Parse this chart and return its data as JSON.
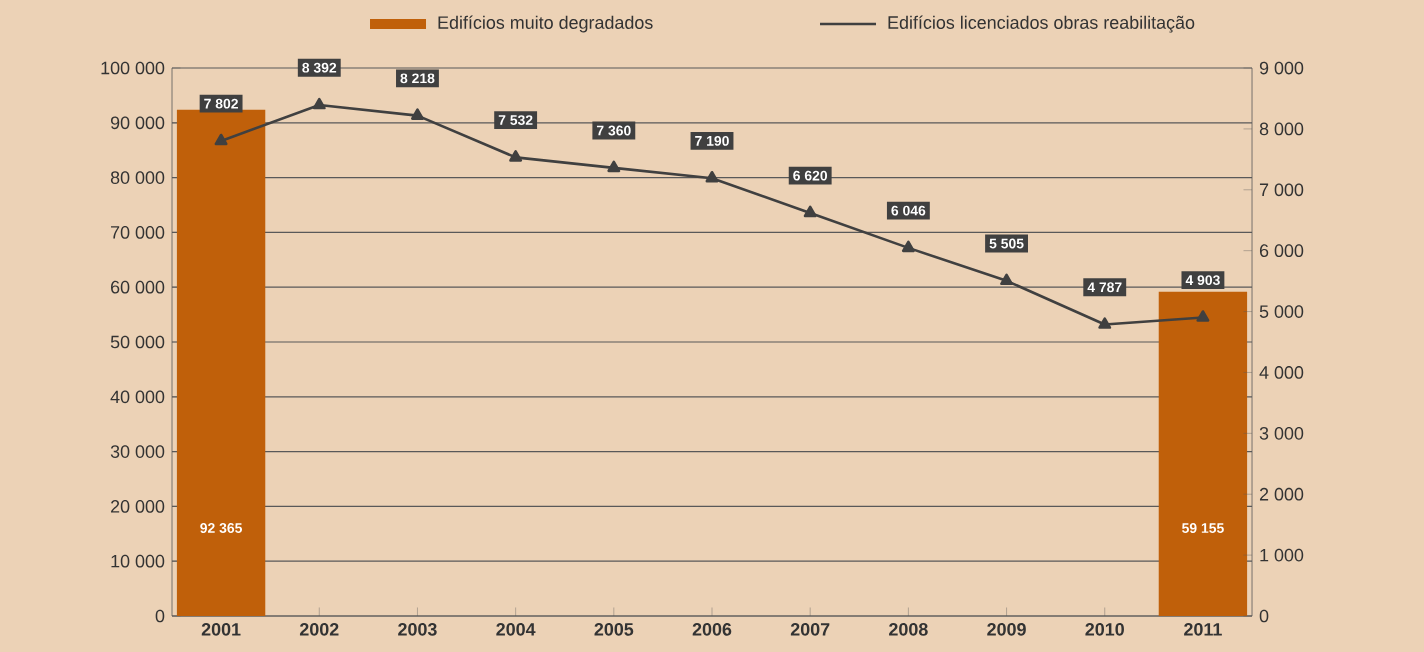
{
  "chart_data": {
    "type": "bar",
    "categories": [
      "2001",
      "2002",
      "2003",
      "2004",
      "2005",
      "2006",
      "2007",
      "2008",
      "2009",
      "2010",
      "2011"
    ],
    "series": [
      {
        "name": "Edifícios muito degradados",
        "color": "#c0600a",
        "values": [
          92365,
          null,
          null,
          null,
          null,
          null,
          null,
          null,
          null,
          null,
          59155
        ],
        "value_labels": [
          "92 365",
          null,
          null,
          null,
          null,
          null,
          null,
          null,
          null,
          null,
          "59 155"
        ]
      },
      {
        "name": "Edifícios licenciados obras reabilitação",
        "type": "line",
        "axis": "y2",
        "color": "#404040",
        "values": [
          7802,
          8392,
          8218,
          7532,
          7360,
          7190,
          6620,
          6046,
          5505,
          4787,
          4903
        ],
        "value_labels": [
          "7 802",
          "8 392",
          "8 218",
          "7 532",
          "7 360",
          "7 190",
          "6 620",
          "6 046",
          "5 505",
          "4 787",
          "4 903"
        ]
      }
    ],
    "ylim": [
      0,
      100000
    ],
    "yticks": [
      0,
      {
        "value": 10000,
        "label": "10 000"
      },
      {
        "value": 20000,
        "label": "20 000"
      },
      {
        "value": 30000,
        "label": "30 000"
      },
      {
        "value": 40000,
        "label": "40 000"
      },
      {
        "value": 50000,
        "label": "50 000"
      },
      {
        "value": 60000,
        "label": "60 000"
      },
      {
        "value": 70000,
        "label": "70 000"
      },
      {
        "value": 80000,
        "label": "80 000"
      },
      {
        "value": 90000,
        "label": "90 000"
      },
      {
        "value": 100000,
        "label": "100 000"
      }
    ],
    "y2lim": [
      0,
      9000
    ],
    "y2ticks": [
      0,
      {
        "value": 1000,
        "label": "1 000"
      },
      {
        "value": 2000,
        "label": "2 000"
      },
      {
        "value": 3000,
        "label": "3 000"
      },
      {
        "value": 4000,
        "label": "4 000"
      },
      {
        "value": 5000,
        "label": "5 000"
      },
      {
        "value": 6000,
        "label": "6 000"
      },
      {
        "value": 7000,
        "label": "7 000"
      },
      {
        "value": 8000,
        "label": "8 000"
      },
      {
        "value": 9000,
        "label": "9 000"
      }
    ],
    "grid": "y",
    "legend": "top",
    "marker": "triangle",
    "line_style": "solid"
  }
}
